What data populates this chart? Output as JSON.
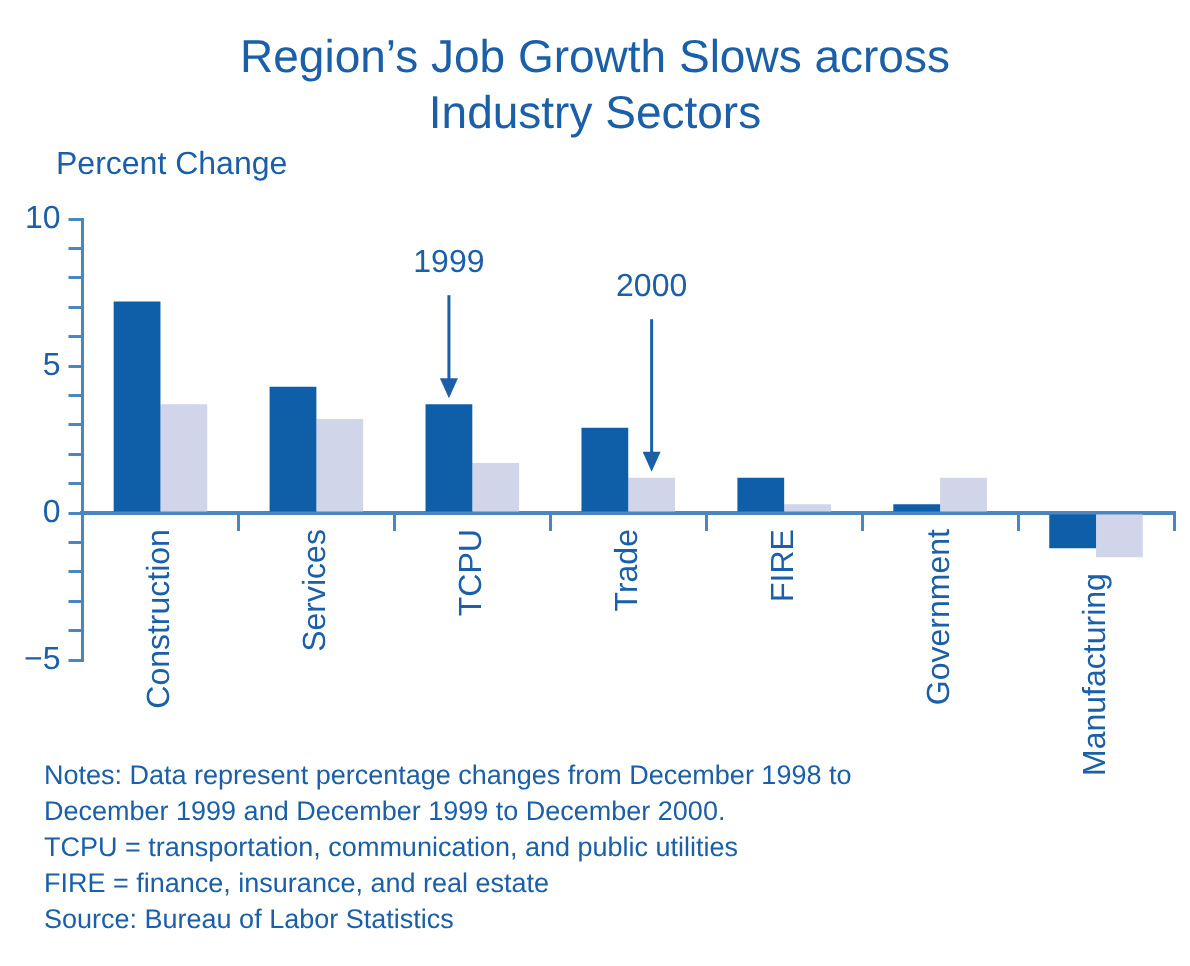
{
  "chart_data": {
    "type": "bar",
    "title": "Region’s Job Growth Slows across Industry Sectors",
    "ylabel": "Percent Change",
    "categories": [
      "Construction",
      "Services",
      "TCPU",
      "Trade",
      "FIRE",
      "Government",
      "Manufacturing"
    ],
    "series": [
      {
        "name": "1999",
        "color": "#0f5fa8",
        "values": [
          7.2,
          4.3,
          3.7,
          2.9,
          1.2,
          0.3,
          -1.2
        ]
      },
      {
        "name": "2000",
        "color": "#d0d5ea",
        "values": [
          3.7,
          3.2,
          1.7,
          1.2,
          0.3,
          1.2,
          -1.5
        ]
      }
    ],
    "ylim": [
      -5,
      10
    ],
    "yticks": [
      -5,
      {
        "value": -4,
        "label": null
      },
      {
        "value": -3,
        "label": null
      },
      {
        "value": -2,
        "label": null
      },
      {
        "value": -1,
        "label": null
      },
      0,
      {
        "value": 1,
        "label": null
      },
      {
        "value": 2,
        "label": null
      },
      {
        "value": 3,
        "label": null
      },
      {
        "value": 4,
        "label": null
      },
      5,
      {
        "value": 6,
        "label": null
      },
      {
        "value": 7,
        "label": null
      },
      {
        "value": 8,
        "label": null
      },
      {
        "value": 9,
        "label": null
      },
      10
    ],
    "grid": false,
    "legend": false,
    "annotations": [
      "Notes: Data represent percentage changes from December 1998 to December 1999 and December 1999 to December 2000.",
      "TCPU = transportation, communication, and public utilities",
      "FIRE = finance, insurance, and real estate",
      "Source: Bureau of Labor Statistics"
    ]
  }
}
